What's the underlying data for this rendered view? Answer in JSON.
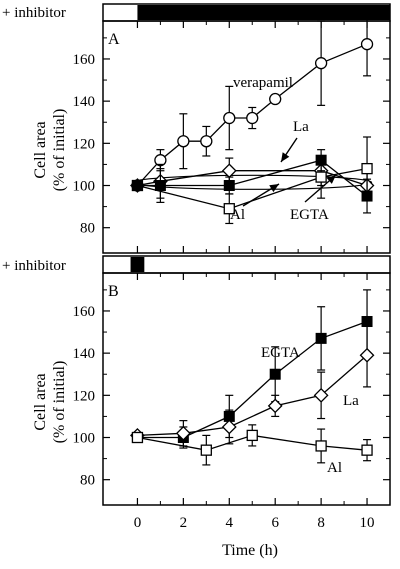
{
  "figure": {
    "inhibitor_label": "+ inhibitor",
    "y_axis_label_line1": "Cell area",
    "y_axis_label_line2": "(% of initial)",
    "x_axis_label": "Time (h)",
    "x_tick_labels": [
      "0",
      "2",
      "4",
      "6",
      "8",
      "10"
    ],
    "y_tick_labels": [
      "80",
      "100",
      "120",
      "140",
      "160"
    ],
    "colors": {
      "ink": "#000000",
      "background": "#ffffff"
    }
  },
  "chart_data": [
    {
      "type": "line",
      "panel_label": "A",
      "xlabel": "",
      "ylabel": "Cell area (% of initial)",
      "xlim": [
        -1.5,
        11
      ],
      "ylim": [
        68,
        178
      ],
      "inhibitor_bar": {
        "shown_from_h": 0,
        "shown_to_h": 11
      },
      "annotations": [
        "verapamil",
        "La",
        "Al",
        "EGTA"
      ],
      "series": [
        {
          "name": "verapamil",
          "marker": "open-circle",
          "x": [
            0,
            1,
            2,
            3,
            4,
            5,
            6,
            8,
            10
          ],
          "y": [
            100,
            112,
            121,
            121,
            132,
            132,
            141,
            158,
            167
          ],
          "err": [
            0,
            5,
            13,
            7,
            15,
            5,
            0,
            20,
            15
          ]
        },
        {
          "name": "La",
          "marker": "open-diamond",
          "x": [
            0,
            1,
            4,
            8,
            10
          ],
          "y": [
            100,
            102,
            107,
            107,
            100
          ],
          "err": [
            0,
            8,
            6,
            7,
            6
          ]
        },
        {
          "name": "Al",
          "marker": "open-square",
          "x": [
            0,
            4,
            8,
            10
          ],
          "y": [
            100,
            89,
            104,
            108
          ],
          "err": [
            0,
            7,
            10,
            15
          ]
        },
        {
          "name": "EGTA",
          "marker": "filled-square",
          "x": [
            0,
            1,
            4,
            8,
            10
          ],
          "y": [
            100,
            100,
            100,
            112,
            95
          ],
          "err": [
            0,
            8,
            4,
            5,
            8
          ]
        }
      ]
    },
    {
      "type": "line",
      "panel_label": "B",
      "xlabel": "Time (h)",
      "ylabel": "Cell area (% of initial)",
      "xlim": [
        -1.5,
        11
      ],
      "ylim": [
        68,
        178
      ],
      "inhibitor_bar": {
        "shown_from_h": -0.3,
        "shown_to_h": 0.3
      },
      "annotations": [
        "EGTA",
        "La",
        "Al"
      ],
      "series": [
        {
          "name": "EGTA",
          "marker": "filled-square",
          "x": [
            0,
            2,
            4,
            6,
            8,
            10
          ],
          "y": [
            100,
            100,
            110,
            130,
            147,
            155
          ],
          "err": [
            0,
            5,
            10,
            13,
            15,
            15
          ]
        },
        {
          "name": "La",
          "marker": "open-diamond",
          "x": [
            0,
            2,
            4,
            6,
            8,
            10
          ],
          "y": [
            101,
            102,
            105,
            115,
            120,
            139
          ],
          "err": [
            0,
            6,
            8,
            5,
            11,
            15
          ]
        },
        {
          "name": "Al",
          "marker": "open-square",
          "x": [
            0,
            3,
            5,
            8,
            10
          ],
          "y": [
            100,
            94,
            101,
            96,
            94
          ],
          "err": [
            0,
            7,
            5,
            8,
            5
          ]
        }
      ]
    }
  ]
}
